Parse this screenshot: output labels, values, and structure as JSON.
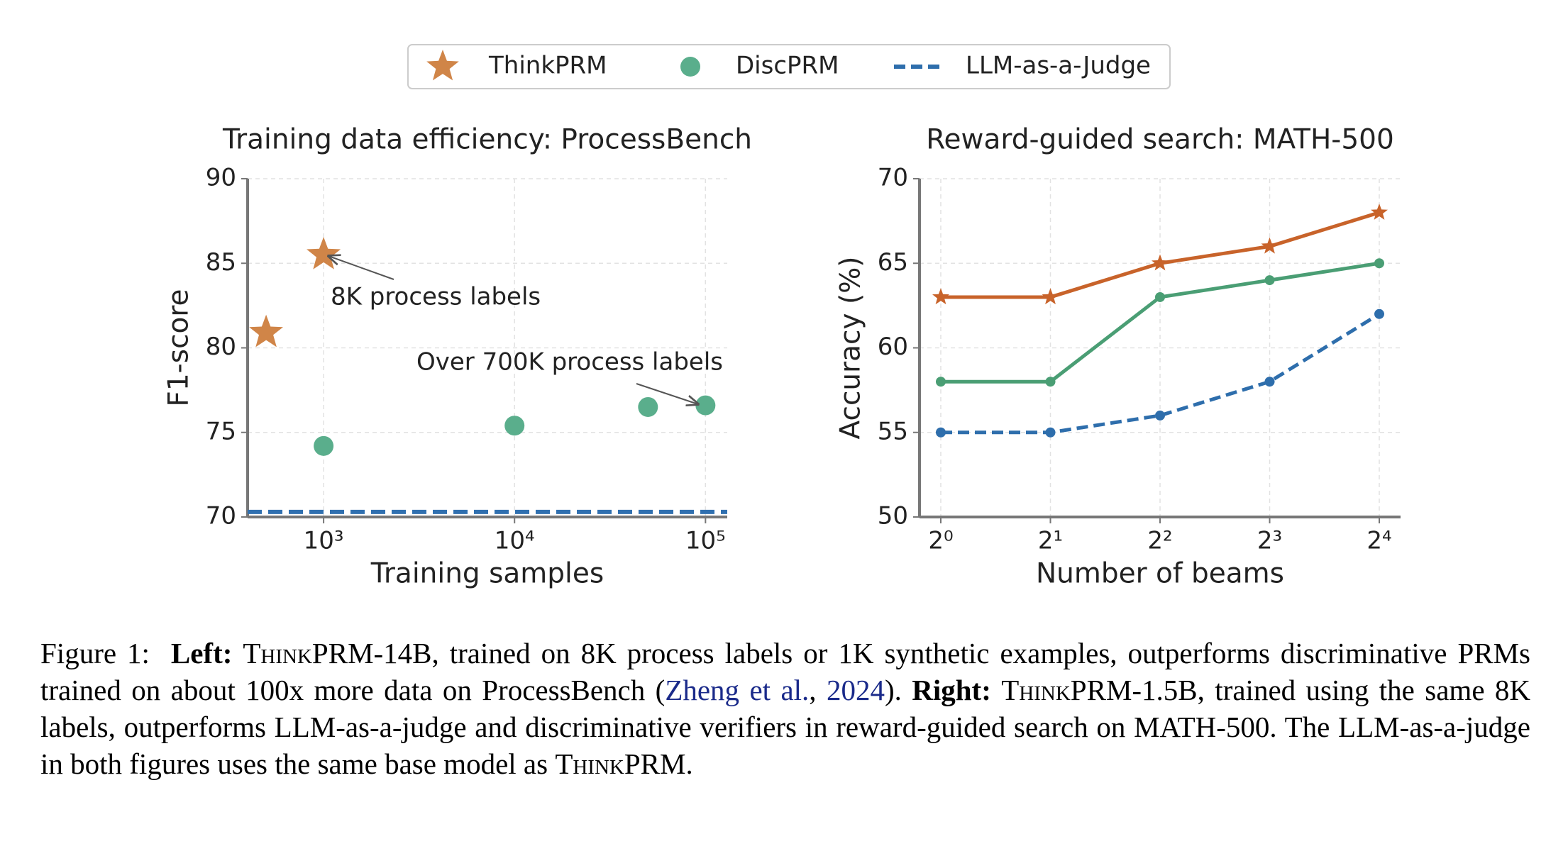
{
  "chart_data": [
    {
      "type": "scatter",
      "title": "Training data efficiency: ProcessBench",
      "xlabel": "Training samples",
      "ylabel": "F1-score",
      "xscale": "log",
      "xlim": [
        400,
        130000
      ],
      "xticks": [
        {
          "value": 1000,
          "label": "10³"
        },
        {
          "value": 10000,
          "label": "10⁴"
        },
        {
          "value": 100000,
          "label": "10⁵"
        }
      ],
      "ylim": [
        70,
        90
      ],
      "yticks": [
        70,
        75,
        80,
        85,
        90
      ],
      "grid": true,
      "series": [
        {
          "marker": "star",
          "color": "#d08548",
          "x": [
            500,
            1000
          ],
          "values": [
            80.9,
            85.5
          ]
        },
        {
          "marker": "circle",
          "color": "#5aae8c",
          "x": [
            1000,
            10000,
            50000,
            100000
          ],
          "values": [
            74.2,
            75.4,
            76.5,
            76.6
          ]
        },
        {
          "marker": "hline",
          "color": "#3070b0",
          "values": [
            70.3
          ]
        }
      ],
      "annotations": [
        {
          "text": "8K process labels",
          "color": "#c8642a"
        },
        {
          "text": "Over 700K process labels",
          "color": "#45997a"
        }
      ]
    },
    {
      "type": "line",
      "title": "Reward-guided search: MATH-500",
      "xlabel": "Number of beams",
      "ylabel": "Accuracy (%)",
      "categories": [
        "2⁰",
        "2¹",
        "2²",
        "2³",
        "2⁴"
      ],
      "ylim": [
        50,
        70
      ],
      "yticks": [
        50,
        55,
        60,
        65,
        70
      ],
      "grid": true,
      "series": [
        {
          "name": "ThinkPRM",
          "marker": "star",
          "dashed": false,
          "color": "#c8632a",
          "values": [
            63,
            63,
            65,
            66,
            68
          ]
        },
        {
          "name": "DiscPRM",
          "marker": "circle",
          "dashed": false,
          "color": "#4a9e74",
          "values": [
            58,
            58,
            63,
            64,
            65
          ]
        },
        {
          "name": "LLM-as-a-Judge",
          "marker": "circle",
          "dashed": true,
          "color": "#2e6eac",
          "values": [
            55,
            55,
            56,
            58,
            62
          ]
        }
      ]
    }
  ],
  "caption": {
    "segments": [
      "Figure 1:",
      "Left:",
      "ThinkPRM",
      "-14B, trained on 8K process labels or 1K synthetic examples, outperforms discriminative PRMs trained on about 100x more data on ProcessBench (",
      "Zheng et al.",
      ", ",
      "2024",
      "). ",
      "Right:",
      "ThinkPRM",
      "-1.5B, trained using the same 8K labels, outperforms LLM-as-a-judge and discriminative verifiers in reward-guided search on MATH-500. The LLM-as-a-judge in both figures uses the same base model as ",
      "ThinkPRM",
      "."
    ]
  }
}
